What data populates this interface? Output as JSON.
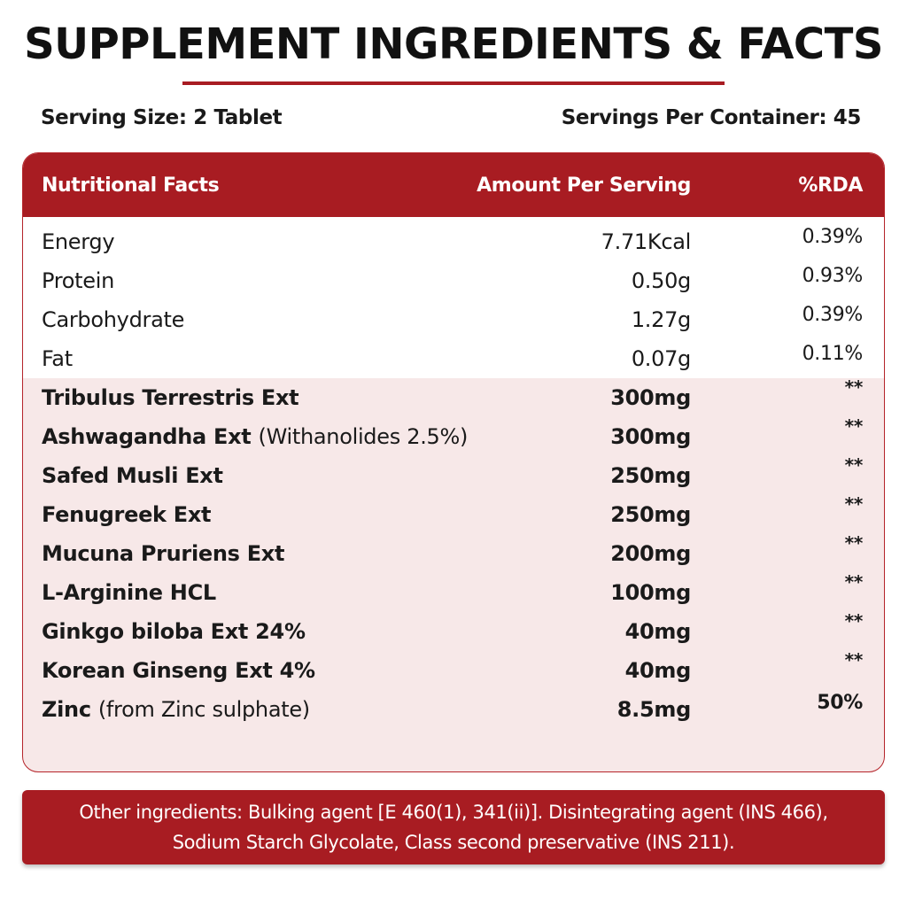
{
  "title": "SUPPLEMENT INGREDIENTS & FACTS",
  "serving": {
    "size": "Serving Size: 2 Tablet",
    "per_container": "Servings Per Container: 45"
  },
  "table": {
    "headers": {
      "nutrient": "Nutritional Facts",
      "amount": "Amount Per Serving",
      "rda": "%RDA"
    },
    "basic_rows": [
      {
        "name": "Energy",
        "amount": "7.71Kcal",
        "rda": "0.39%"
      },
      {
        "name": "Protein",
        "amount": "0.50g",
        "rda": "0.93%"
      },
      {
        "name": "Carbohydrate",
        "amount": "1.27g",
        "rda": "0.39%"
      },
      {
        "name": "Fat",
        "amount": "0.07g",
        "rda": "0.11%"
      }
    ],
    "ingredient_rows": [
      {
        "name": "Tribulus Terrestris Ext",
        "note": "",
        "amount": "300mg",
        "rda": "**"
      },
      {
        "name": "Ashwagandha Ext",
        "note": "(Withanolides 2.5%)",
        "amount": "300mg",
        "rda": "**"
      },
      {
        "name": "Safed Musli Ext",
        "note": "",
        "amount": "250mg",
        "rda": "**"
      },
      {
        "name": "Fenugreek Ext",
        "note": "",
        "amount": "250mg",
        "rda": "**"
      },
      {
        "name": "Mucuna Pruriens Ext",
        "note": "",
        "amount": "200mg",
        "rda": "**"
      },
      {
        "name": "L-Arginine HCL",
        "note": "",
        "amount": "100mg",
        "rda": "**"
      },
      {
        "name": "Ginkgo biloba Ext 24%",
        "note": "",
        "amount": "40mg",
        "rda": "**"
      },
      {
        "name": "Korean Ginseng Ext 4%",
        "note": "",
        "amount": "40mg",
        "rda": "**"
      },
      {
        "name": "Zinc",
        "note": "(from Zinc sulphate)",
        "amount": "8.5mg",
        "rda": "50%"
      }
    ]
  },
  "other_ingredients": {
    "line1": "Other ingredients: Bulking agent [E 460(1), 341(ii)]. Disintegrating agent (INS 466),",
    "line2": "Sodium Starch Glycolate, Class second preservative (INS 211)."
  },
  "colors": {
    "accent": "#a81c22",
    "ingredient_bg": "#f7e8e8"
  }
}
